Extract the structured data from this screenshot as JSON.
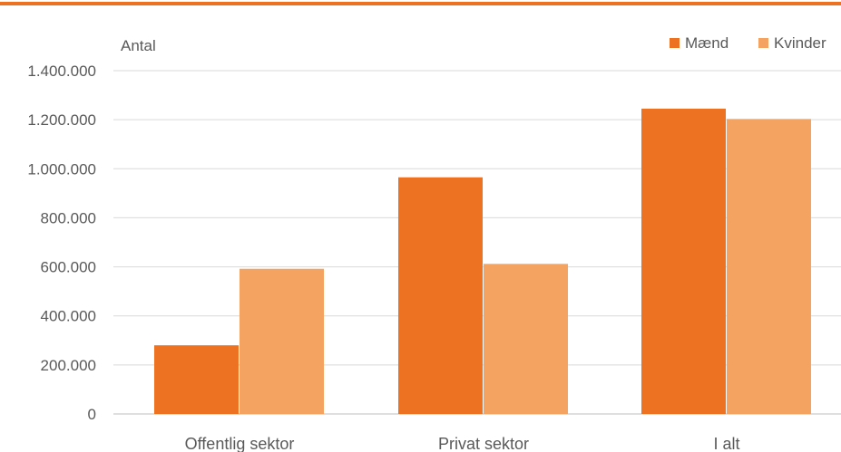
{
  "chart_data": {
    "type": "bar",
    "unit_label": "Antal",
    "categories": [
      "Offentlig sektor",
      "Privat sektor",
      "I alt"
    ],
    "series": [
      {
        "name": "Mænd",
        "values": [
          280000,
          965000,
          1245000
        ],
        "color": "#ED7222"
      },
      {
        "name": "Kvinder",
        "values": [
          592000,
          612000,
          1203000
        ],
        "color": "#F4A460"
      }
    ],
    "yticks": [
      "0",
      "200.000",
      "400.000",
      "600.000",
      "800.000",
      "1.000.000",
      "1.200.000",
      "1.400.000"
    ],
    "ylim": [
      0,
      1400000
    ],
    "grid": true,
    "legend_position": "top-right",
    "colors": {
      "top_rule": "#ED7222",
      "grid": "#D9D9D9",
      "axis": "#BFBFBF",
      "text": "#595959"
    }
  }
}
